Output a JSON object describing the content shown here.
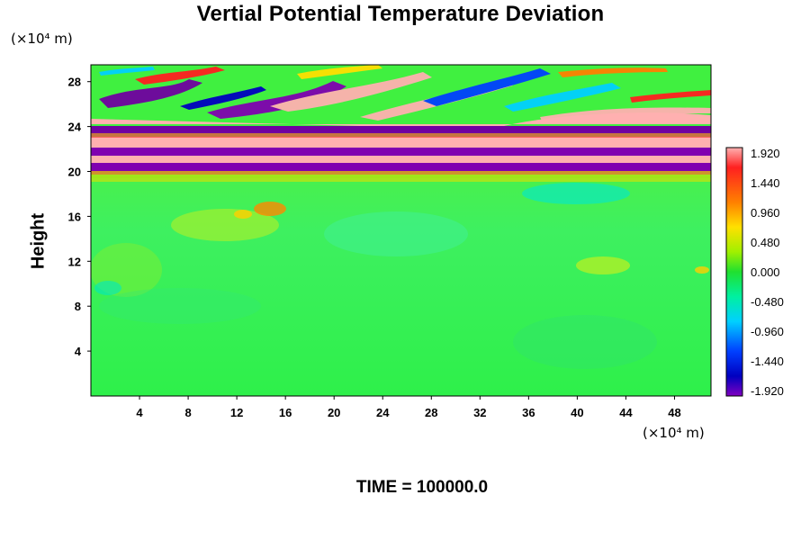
{
  "chart_data": {
    "type": "heatmap",
    "title": "Vertial Potential Temperature Deviation",
    "ylabel": "Height",
    "y_unit": "(×10⁴ m)",
    "x_unit": "(×10⁴ m)",
    "x_ticks": [
      4,
      8,
      12,
      16,
      20,
      24,
      28,
      32,
      36,
      40,
      44,
      48
    ],
    "y_ticks": [
      4,
      8,
      12,
      16,
      20,
      24,
      28
    ],
    "xlim": [
      0,
      51
    ],
    "ylim": [
      0,
      29.5
    ],
    "colorbar": {
      "ticks": [
        "1.920",
        "1.440",
        "0.960",
        "0.480",
        "0.000",
        "-0.480",
        "-0.960",
        "-1.440",
        "-1.920"
      ],
      "range": [
        -1.92,
        1.92
      ]
    },
    "footer": "TIME = 100000.0"
  }
}
